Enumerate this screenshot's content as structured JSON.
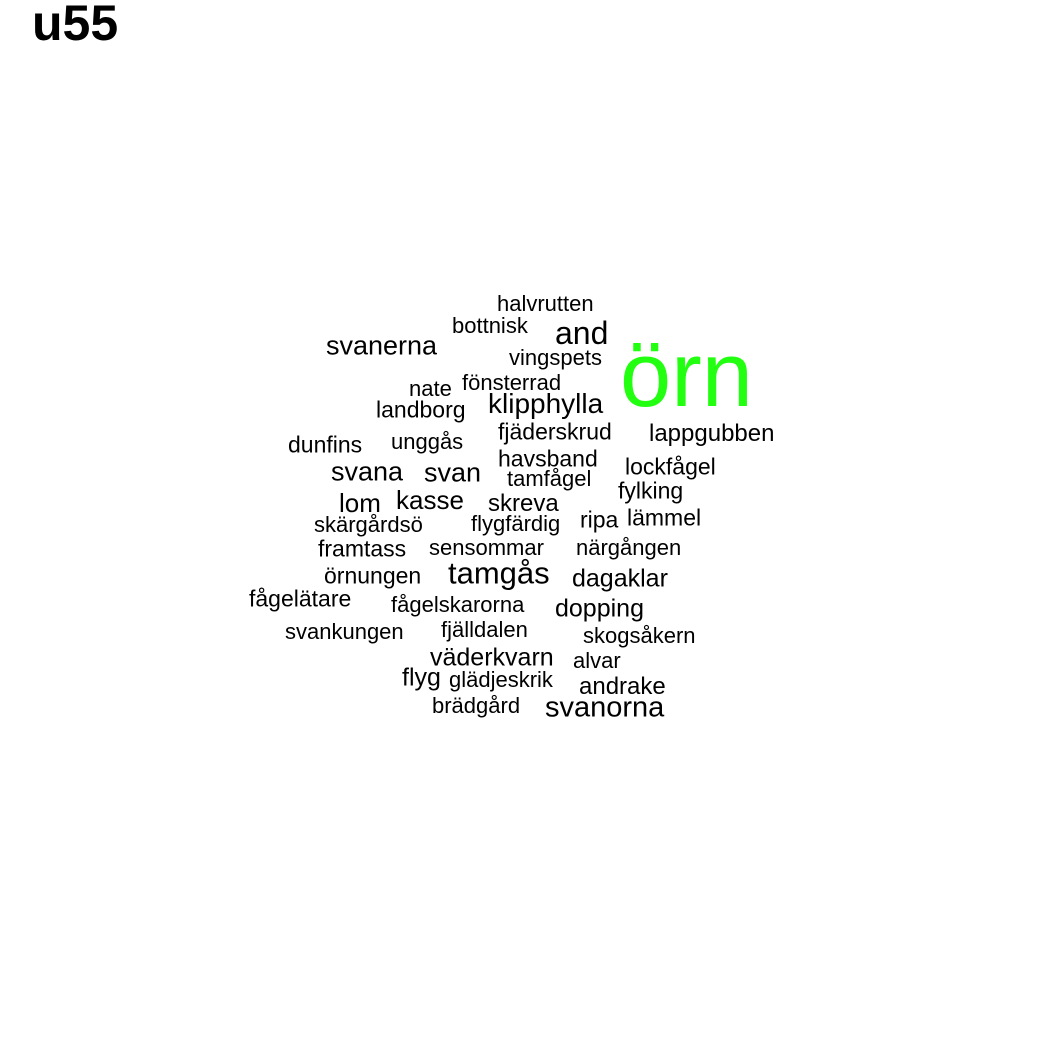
{
  "title": "u55",
  "colors": {
    "highlight": "#22ff11",
    "text": "#000000",
    "background": "#ffffff"
  },
  "words": [
    {
      "text": "örn",
      "highlight": true
    },
    {
      "text": "halvrutten"
    },
    {
      "text": "bottnisk"
    },
    {
      "text": "and"
    },
    {
      "text": "svanerna"
    },
    {
      "text": "vingspets"
    },
    {
      "text": "nate"
    },
    {
      "text": "fönsterrad"
    },
    {
      "text": "landborg"
    },
    {
      "text": "klipphylla"
    },
    {
      "text": "fjäderskrud"
    },
    {
      "text": "lappgubben"
    },
    {
      "text": "dunfins"
    },
    {
      "text": "unggås"
    },
    {
      "text": "havsband"
    },
    {
      "text": "lockfågel"
    },
    {
      "text": "svana"
    },
    {
      "text": "svan"
    },
    {
      "text": "tamfågel"
    },
    {
      "text": "fylking"
    },
    {
      "text": "lom"
    },
    {
      "text": "kasse"
    },
    {
      "text": "skreva"
    },
    {
      "text": "skärgårdsö"
    },
    {
      "text": "flygfärdig"
    },
    {
      "text": "ripa"
    },
    {
      "text": "lämmel"
    },
    {
      "text": "framtass"
    },
    {
      "text": "sensommar"
    },
    {
      "text": "närgången"
    },
    {
      "text": "örnungen"
    },
    {
      "text": "tamgås"
    },
    {
      "text": "dagaklar"
    },
    {
      "text": "fågelätare"
    },
    {
      "text": "fågelskarorna"
    },
    {
      "text": "dopping"
    },
    {
      "text": "svankungen"
    },
    {
      "text": "fjälldalen"
    },
    {
      "text": "skogsåkern"
    },
    {
      "text": "väderkvarn"
    },
    {
      "text": "alvar"
    },
    {
      "text": "flyg"
    },
    {
      "text": "glädjeskrik"
    },
    {
      "text": "andrake"
    },
    {
      "text": "brädgård"
    },
    {
      "text": "svanorna"
    }
  ]
}
